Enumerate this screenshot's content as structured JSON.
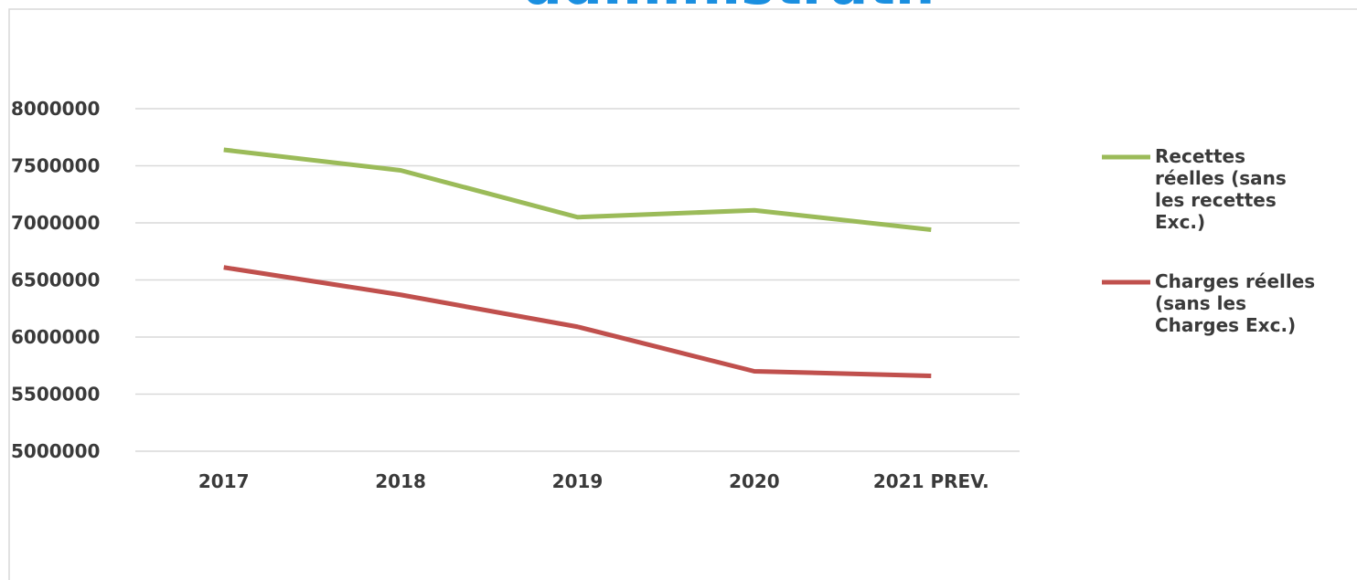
{
  "chart_data": {
    "type": "line",
    "title": "administratif",
    "categories": [
      "2017",
      "2018",
      "2019",
      "2020",
      "2021 PREV."
    ],
    "series": [
      {
        "name": "Recettes réelles (sans les recettes Exc.)",
        "color": "#9bbb59",
        "values": [
          7640000,
          7460000,
          7050000,
          7110000,
          6940000
        ]
      },
      {
        "name": "Charges réelles (sans les Charges Exc.)",
        "color": "#c0504d",
        "values": [
          6610000,
          6370000,
          6090000,
          5700000,
          5660000
        ]
      }
    ],
    "ylim": [
      5000000,
      8000000
    ],
    "yticks": [
      5000000,
      5500000,
      6000000,
      6500000,
      7000000,
      7500000,
      8000000
    ],
    "grid": true,
    "legend": "right"
  }
}
